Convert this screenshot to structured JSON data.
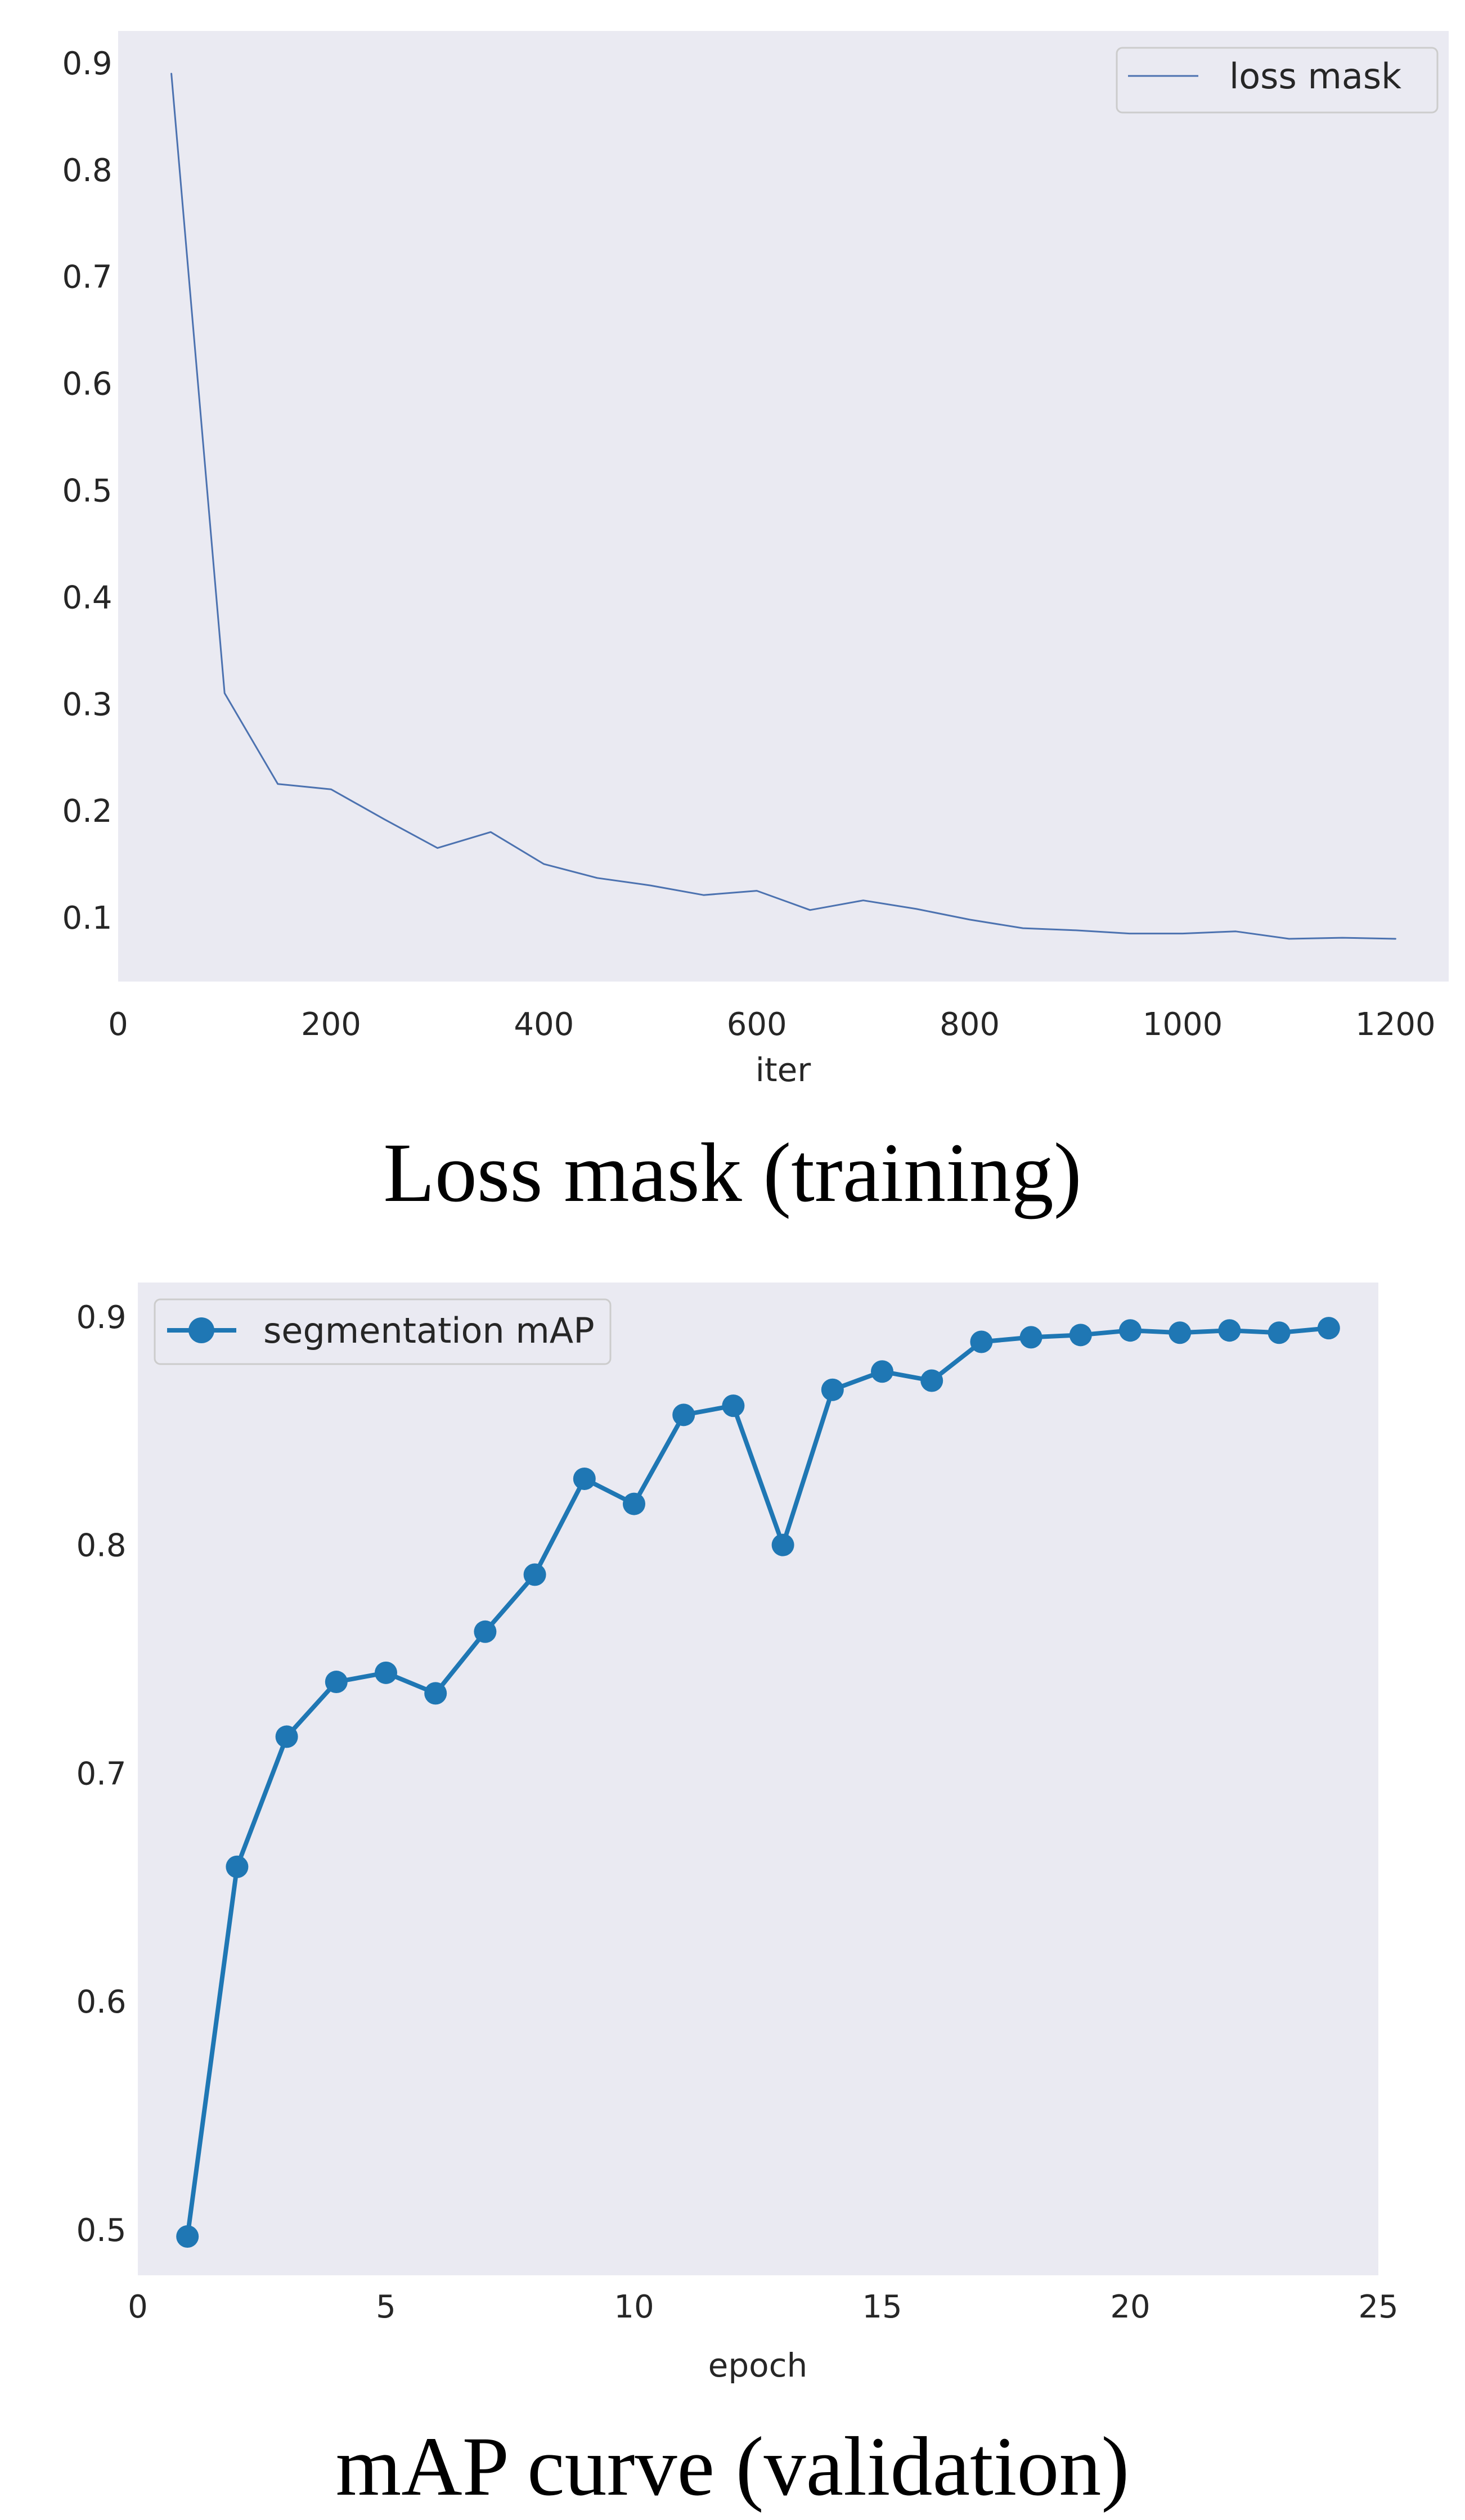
{
  "chart_data": [
    {
      "type": "line",
      "caption": "Loss mask (training)",
      "xlabel": "iter",
      "ylabel": "",
      "xlim": [
        0,
        1250
      ],
      "ylim": [
        0.04,
        0.93
      ],
      "xticks": [
        0,
        200,
        400,
        600,
        800,
        1000,
        1200
      ],
      "yticks": [
        0.1,
        0.2,
        0.3,
        0.4,
        0.5,
        0.6,
        0.7,
        0.8,
        0.9
      ],
      "grid": false,
      "legend_position": "top-right",
      "series": [
        {
          "name": "loss mask",
          "color": "#4c72b0",
          "markers": false,
          "x": [
            50,
            100,
            150,
            200,
            250,
            300,
            350,
            400,
            450,
            500,
            550,
            600,
            650,
            700,
            750,
            800,
            850,
            900,
            950,
            1000,
            1050,
            1100,
            1150,
            1200
          ],
          "y": [
            0.89,
            0.31,
            0.225,
            0.22,
            0.192,
            0.165,
            0.18,
            0.15,
            0.137,
            0.13,
            0.121,
            0.125,
            0.107,
            0.116,
            0.108,
            0.098,
            0.09,
            0.088,
            0.085,
            0.085,
            0.087,
            0.08,
            0.081,
            0.08
          ]
        }
      ]
    },
    {
      "type": "line",
      "caption": "mAP curve (validation)",
      "xlabel": "epoch",
      "ylabel": "",
      "xlim": [
        0,
        25
      ],
      "ylim": [
        0.48,
        0.915
      ],
      "xticks": [
        0,
        5,
        10,
        15,
        20,
        25
      ],
      "yticks": [
        0.5,
        0.6,
        0.7,
        0.8,
        0.9
      ],
      "grid": false,
      "legend_position": "top-left",
      "series": [
        {
          "name": "segmentation mAP",
          "color": "#1f77b4",
          "markers": true,
          "x": [
            1,
            2,
            3,
            4,
            5,
            6,
            7,
            8,
            9,
            10,
            11,
            12,
            13,
            14,
            15,
            16,
            17,
            18,
            19,
            20,
            21,
            22,
            23,
            24
          ],
          "y": [
            0.497,
            0.659,
            0.716,
            0.74,
            0.744,
            0.735,
            0.762,
            0.787,
            0.829,
            0.818,
            0.857,
            0.861,
            0.8,
            0.868,
            0.876,
            0.872,
            0.889,
            0.891,
            0.892,
            0.894,
            0.893,
            0.894,
            0.893,
            0.895
          ]
        }
      ]
    }
  ]
}
